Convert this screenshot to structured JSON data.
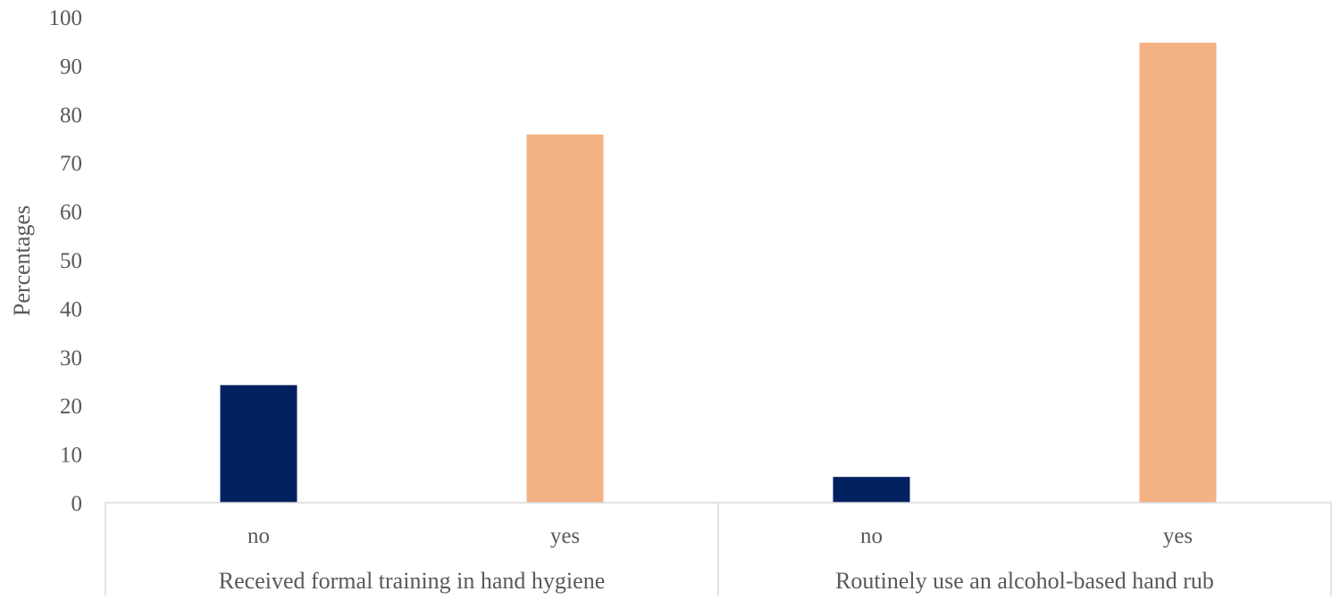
{
  "chart_data": {
    "type": "bar",
    "ylabel": "Percentages",
    "ylim": [
      0,
      100
    ],
    "yticks": [
      0,
      10,
      20,
      30,
      40,
      50,
      60,
      70,
      80,
      90,
      100
    ],
    "grid": false,
    "groups": [
      {
        "label": "Received formal training in hand hygiene",
        "categories": [
          "no",
          "yes"
        ],
        "values": [
          24.2,
          75.8
        ]
      },
      {
        "label": "Routinely use an alcohol-based hand rub",
        "categories": [
          "no",
          "yes"
        ],
        "values": [
          5.3,
          94.7
        ]
      }
    ],
    "colors": {
      "no": "#002060",
      "yes": "#f4b183"
    }
  }
}
